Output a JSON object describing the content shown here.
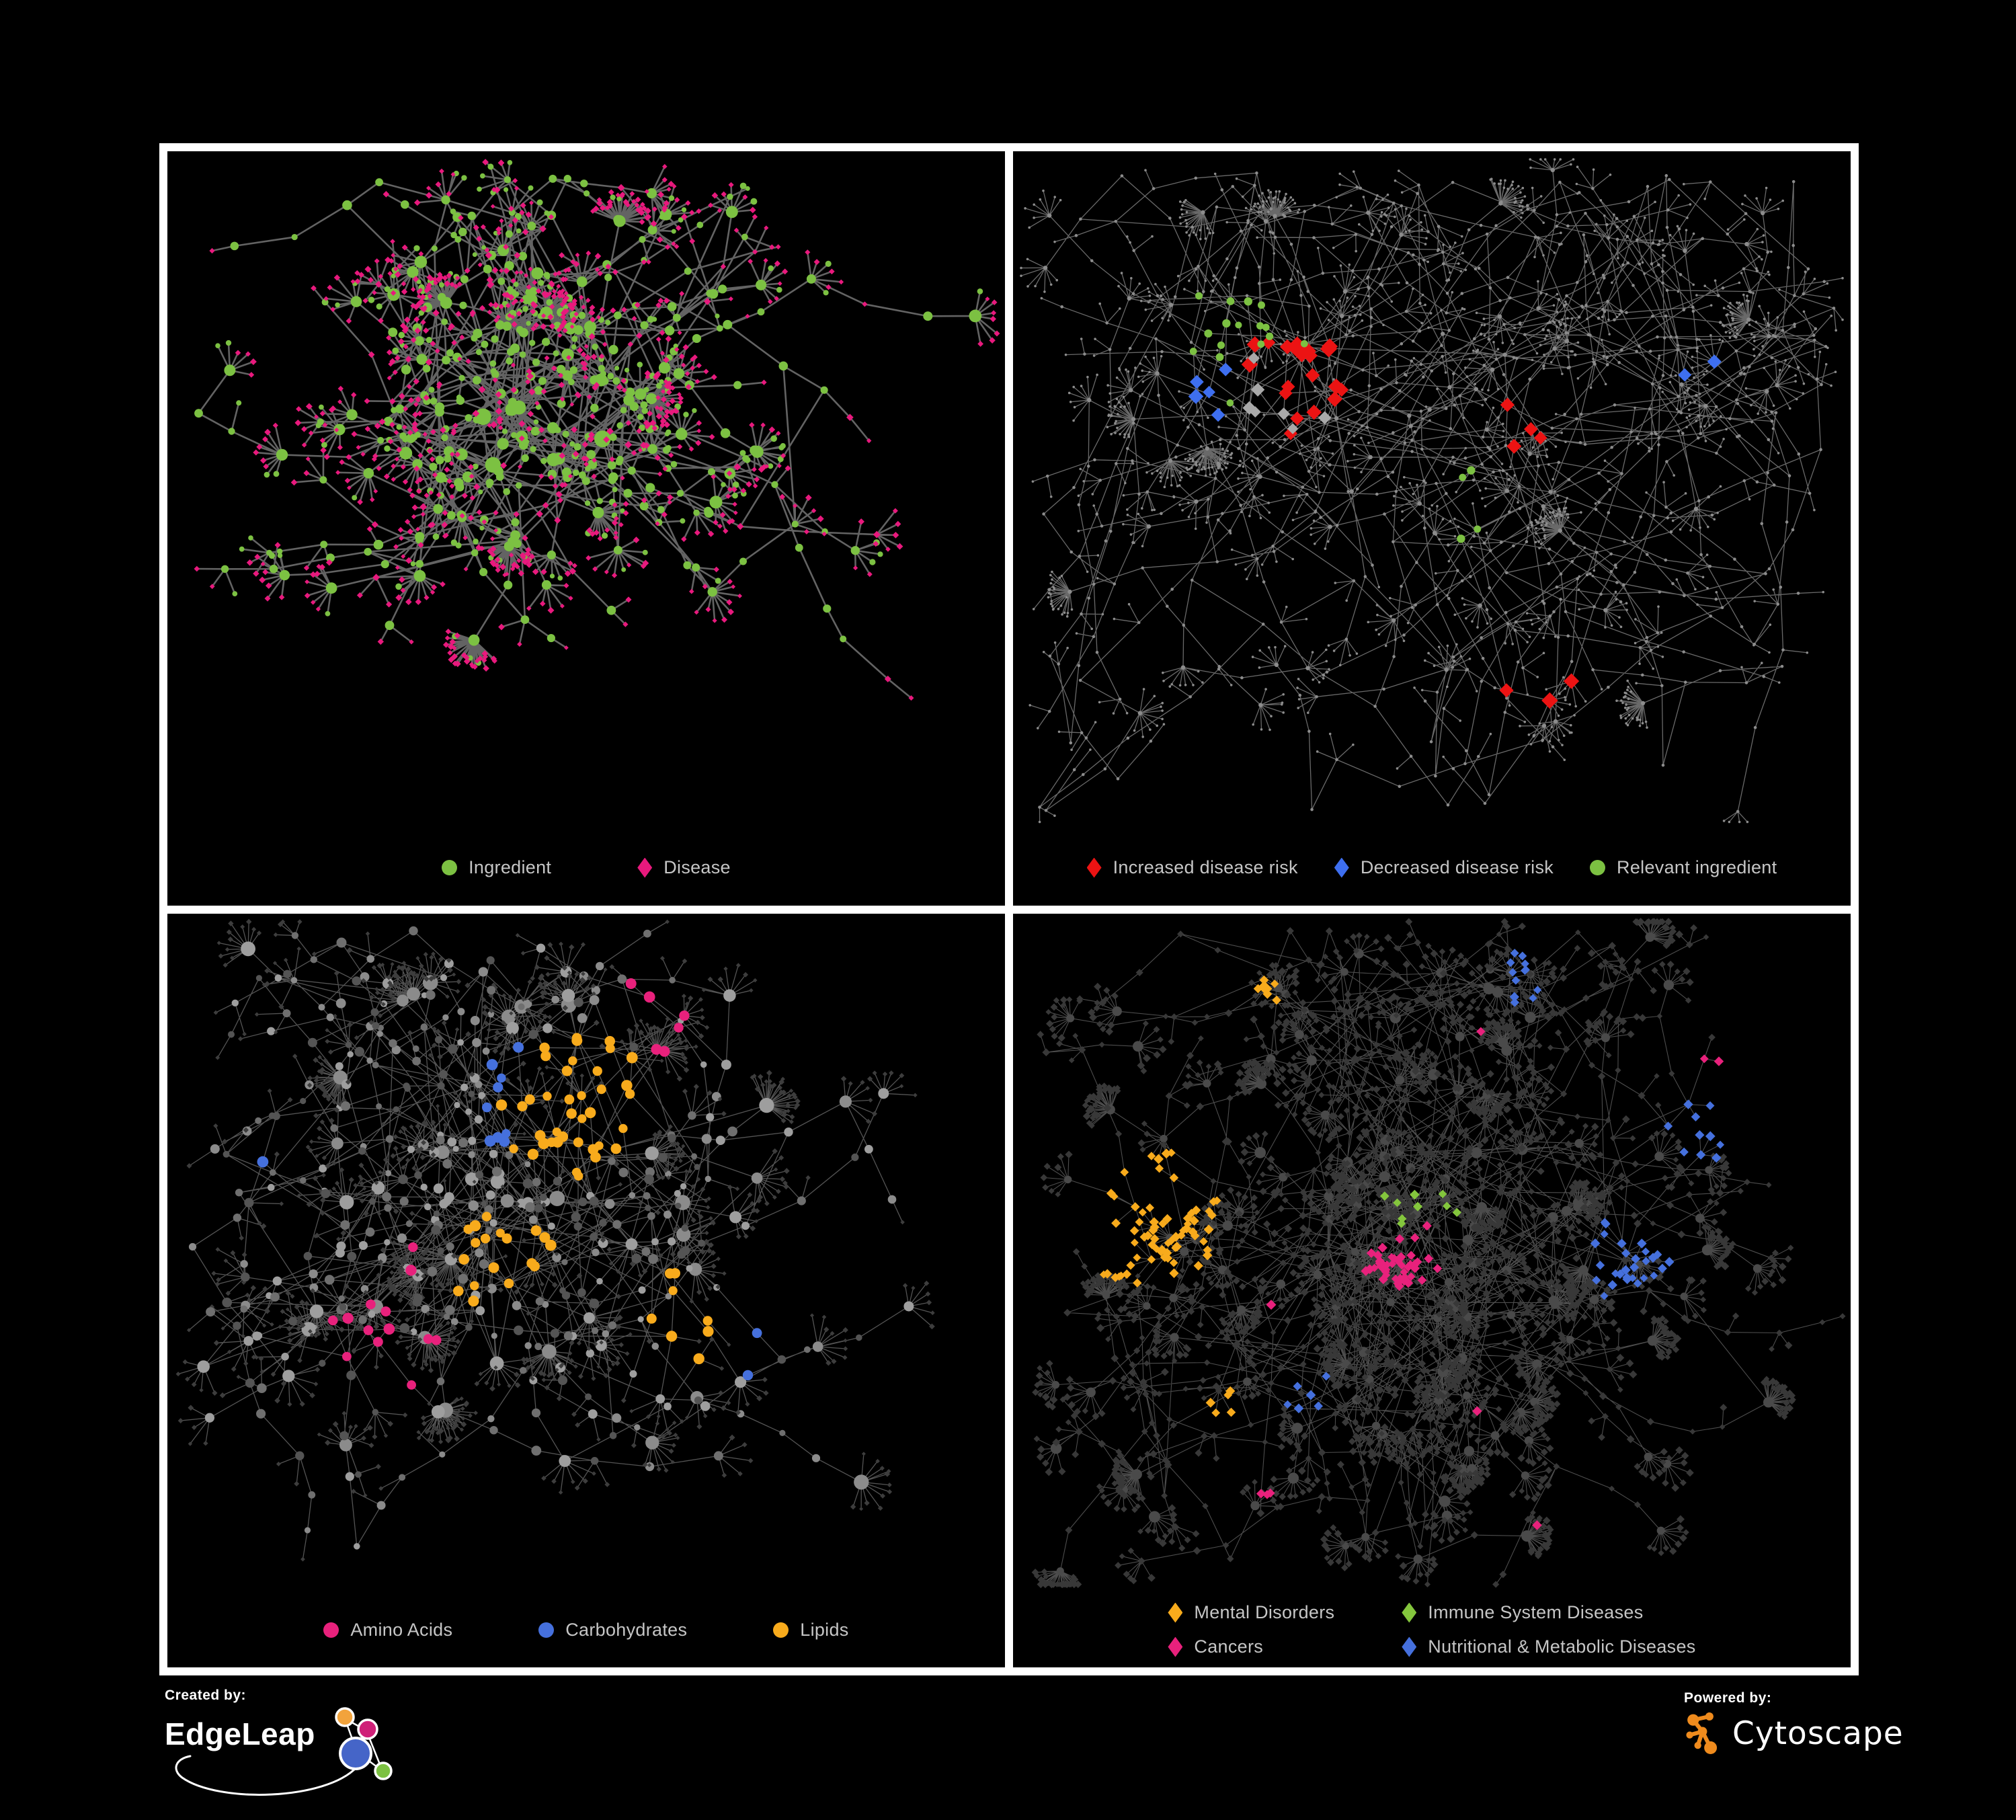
{
  "page": {
    "background": "#000000",
    "frame_color": "#ffffff"
  },
  "panels": [
    {
      "id": "ingredient-disease-network",
      "legend": {
        "layout": "row-g130",
        "items": [
          {
            "label": "Ingredient",
            "shape": "circle",
            "color": "#7cc142"
          },
          {
            "label": "Disease",
            "shape": "diamond",
            "color": "#e8197d"
          }
        ]
      },
      "graph": {
        "seed": 11,
        "core": [
          0.44,
          0.4
        ],
        "spread": [
          0.21,
          0.17
        ],
        "hubs": 13,
        "branchMin": 3,
        "branchVar": 3,
        "stepsVar": 3,
        "segMin": 45,
        "segVar": 60,
        "branchP": 0.27,
        "sideLeafP": 0.28,
        "fanP": 0.58,
        "fanMin": 4,
        "fanVar": 6,
        "bigFanP": 0.05,
        "leafLen": 34,
        "mesh": 110,
        "meshR": 240,
        "style": "bipartite",
        "edge": {
          "color": "#686868",
          "width": 2.6,
          "opacity": 0.95
        },
        "colors": {
          "ingredient": "#7cc142",
          "disease": "#e8197d"
        }
      }
    },
    {
      "id": "disease-risk-network",
      "legend": {
        "layout": "row-g52",
        "items": [
          {
            "label": "Increased disease risk",
            "shape": "diamond",
            "color": "#ec1313"
          },
          {
            "label": "Decreased disease risk",
            "shape": "diamond",
            "color": "#3e6ff0"
          },
          {
            "label": "Relevant ingredient",
            "shape": "circle",
            "color": "#7cc142"
          }
        ]
      },
      "graph": {
        "seed": 23,
        "core": [
          0.45,
          0.38
        ],
        "spread": [
          0.26,
          0.21
        ],
        "hubs": 13,
        "branchMin": 3,
        "branchVar": 3,
        "stepsVar": 5,
        "segMin": 55,
        "segVar": 75,
        "branchP": 0.32,
        "sideLeafP": 0.22,
        "fanP": 0.5,
        "fanMin": 3,
        "fanVar": 6,
        "bigFanP": 0.035,
        "leafLen": 30,
        "mesh": 60,
        "meshR": 230,
        "style": "highlight",
        "edge": {
          "color": "#7b7b7b",
          "width": 1.3,
          "opacity": 0.85
        },
        "base": {
          "color": "#8c8c8c"
        },
        "groups": [
          {
            "shape": "diamond",
            "color": "#ec1313",
            "r": 11,
            "spots": [
              [
                0.34,
                0.33,
                0.2,
                21
              ],
              [
                0.6,
                0.4,
                0.12,
                4
              ],
              [
                0.63,
                0.79,
                0.08,
                3
              ]
            ]
          },
          {
            "shape": "diamond",
            "color": "#3e6ff0",
            "r": 10,
            "spots": [
              [
                0.22,
                0.34,
                0.1,
                5
              ],
              [
                0.82,
                0.33,
                0.05,
                2
              ]
            ]
          },
          {
            "shape": "diamond",
            "color": "#a9a9a9",
            "r": 9,
            "spots": [
              [
                0.31,
                0.37,
                0.22,
                7
              ]
            ]
          },
          {
            "shape": "circle",
            "color": "#7cc142",
            "r": 5.5,
            "spots": [
              [
                0.28,
                0.3,
                0.22,
                16
              ],
              [
                0.54,
                0.53,
                0.12,
                4
              ]
            ]
          }
        ]
      }
    },
    {
      "id": "nutrient-class-network",
      "legend": {
        "layout": "row-g130",
        "items": [
          {
            "label": "Amino Acids",
            "shape": "circle",
            "color": "#e8217c"
          },
          {
            "label": "Carbohydrates",
            "shape": "circle",
            "color": "#4570dd"
          },
          {
            "label": "Lipids",
            "shape": "circle",
            "color": "#f8ab1c"
          }
        ]
      },
      "graph": {
        "seed": 37,
        "core": [
          0.4,
          0.42
        ],
        "spread": [
          0.22,
          0.18
        ],
        "hubs": 13,
        "branchMin": 3,
        "branchVar": 3,
        "stepsVar": 4,
        "segMin": 45,
        "segVar": 60,
        "branchP": 0.28,
        "sideLeafP": 0.28,
        "fanP": 0.6,
        "fanMin": 4,
        "fanVar": 8,
        "bigFanP": 0.06,
        "leafLen": 36,
        "mesh": 150,
        "meshR": 250,
        "style": "grayclass",
        "edge": {
          "color": "#888888",
          "width": 1.3,
          "opacity": 0.62
        },
        "grays": [
          "#9e9e9e",
          "#8b8b8b",
          "#6f6f6f",
          "#545454"
        ],
        "leafColor": "#3d3d3d",
        "groups": [
          {
            "color": "#f8ab1c",
            "spots": [
              [
                0.49,
                0.27,
                0.13,
                38
              ],
              [
                0.41,
                0.52,
                0.22,
                18
              ],
              [
                0.63,
                0.6,
                0.17,
                8
              ]
            ]
          },
          {
            "color": "#4570dd",
            "spots": [
              [
                0.45,
                0.28,
                0.09,
                9
              ],
              [
                0.7,
                0.63,
                0.05,
                2
              ],
              [
                0.12,
                0.36,
                0.05,
                1
              ]
            ]
          },
          {
            "color": "#e8217c",
            "spots": [
              [
                0.3,
                0.63,
                0.42,
                13
              ],
              [
                0.57,
                0.2,
                0.28,
                6
              ]
            ]
          }
        ]
      }
    },
    {
      "id": "disease-class-network",
      "legend": {
        "layout": "grid2",
        "items": [
          {
            "label": "Mental Disorders",
            "shape": "diamond",
            "color": "#f8ab1c"
          },
          {
            "label": "Immune System Diseases",
            "shape": "diamond",
            "color": "#84c63d"
          },
          {
            "label": "Cancers",
            "shape": "diamond",
            "color": "#e8217c"
          },
          {
            "label": "Nutritional & Metabolic Diseases",
            "shape": "diamond",
            "color": "#4570dd"
          }
        ]
      },
      "graph": {
        "seed": 53,
        "core": [
          0.47,
          0.44
        ],
        "spread": [
          0.25,
          0.19
        ],
        "hubs": 15,
        "branchMin": 3,
        "branchVar": 4,
        "stepsVar": 4,
        "segMin": 40,
        "segVar": 55,
        "branchP": 0.3,
        "sideLeafP": 0.3,
        "fanP": 0.62,
        "fanMin": 4,
        "fanVar": 8,
        "bigFanP": 0.07,
        "leafLen": 28,
        "mesh": 170,
        "meshR": 240,
        "style": "darkdiamond",
        "edge": {
          "color": "#8c8c8c",
          "width": 1.1,
          "opacity": 0.55
        },
        "baseColor": "#383838",
        "hubColor": "#4a4a4a",
        "groups": [
          {
            "color": "#f8ab1c",
            "spots": [
              [
                0.16,
                0.44,
                0.15,
                68
              ],
              [
                0.3,
                0.11,
                0.09,
                8
              ],
              [
                0.25,
                0.73,
                0.07,
                5
              ]
            ]
          },
          {
            "color": "#e8217c",
            "spots": [
              [
                0.47,
                0.52,
                0.16,
                46
              ],
              [
                0.89,
                0.24,
                0.06,
                6
              ],
              [
                0.31,
                0.86,
                0.06,
                3
              ]
            ]
          },
          {
            "color": "#4570dd",
            "spots": [
              [
                0.73,
                0.5,
                0.16,
                28
              ],
              [
                0.6,
                0.09,
                0.14,
                12
              ],
              [
                0.83,
                0.3,
                0.1,
                10
              ],
              [
                0.35,
                0.71,
                0.09,
                6
              ]
            ]
          },
          {
            "color": "#84c63d",
            "spots": [
              [
                0.5,
                0.42,
                0.35,
                9
              ]
            ]
          }
        ]
      }
    }
  ],
  "footer": {
    "created_by_label": "Created by:",
    "created_by_name": "EdgeLeap",
    "powered_by_label": "Powered by:",
    "powered_by_name": "Cytoscape",
    "edgeleap_logo_colors": {
      "blue": "#4565c8",
      "orange": "#f2a33c",
      "pink": "#cf2078",
      "green": "#7cc142",
      "stroke": "#ffffff"
    },
    "cytoscape_logo_color": "#ef8b1d"
  }
}
